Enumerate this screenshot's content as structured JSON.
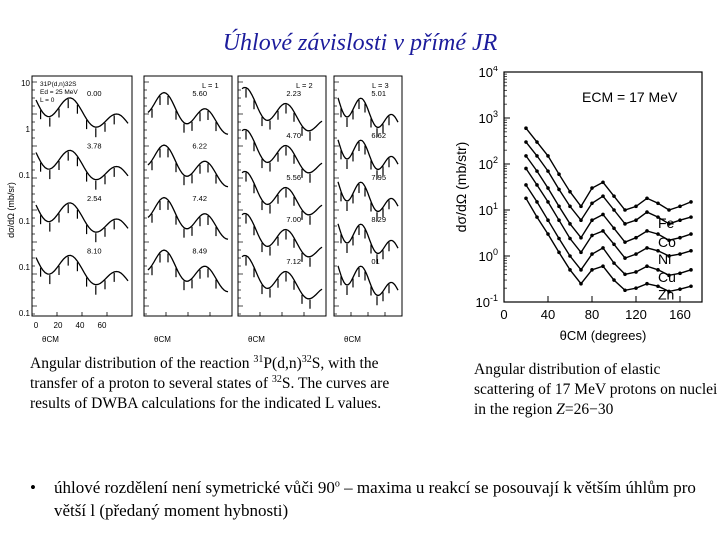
{
  "title": "Úhlové závislosti v přímé JR",
  "left_figure": {
    "ylabel": "dσ/dΩ (mb/sr)",
    "header_lines": [
      "31P(d,n)32S",
      "Ed = 25 MeV",
      "L = 0"
    ],
    "panel_labels": [
      "L = 1",
      "L = 2",
      "L = 3"
    ],
    "y_tick_labels": [
      "10",
      "1",
      "0.1",
      "0.1",
      "0.1",
      "0.1"
    ],
    "x_tick_labels": [
      "0",
      "20",
      "40",
      "60"
    ],
    "xlabel": "θCM",
    "energy_labels": [
      [
        "0.00",
        "3.78",
        "2.54",
        "8.10"
      ],
      [
        "5.60",
        "6.22",
        "7.42",
        "8.49"
      ],
      [
        "2.23",
        "4.70",
        "5.56",
        "7.00",
        "7.12"
      ],
      [
        "5.01",
        "6.62",
        "7.95",
        "8.29",
        "01"
      ]
    ]
  },
  "chart_data": {
    "type": "line",
    "title": "ECM = 17 MeV",
    "xlabel": "θCM (degrees)",
    "ylabel": "dσ/dΩ (mb/str)",
    "yscale": "log",
    "xlim": [
      0,
      180
    ],
    "ylim": [
      0.1,
      10000
    ],
    "x_ticks": [
      0,
      40,
      80,
      120,
      160
    ],
    "y_tick_labels": [
      "10-1",
      "100",
      "101",
      "102",
      "103",
      "104"
    ],
    "x": [
      20,
      30,
      40,
      50,
      60,
      70,
      80,
      90,
      100,
      110,
      120,
      130,
      140,
      150,
      160,
      170
    ],
    "series": [
      {
        "name": "",
        "values": [
          600,
          300,
          150,
          60,
          25,
          12,
          30,
          40,
          20,
          10,
          12,
          18,
          14,
          10,
          12,
          15
        ]
      },
      {
        "name": "Fe",
        "values": [
          300,
          150,
          70,
          28,
          12,
          6,
          14,
          20,
          10,
          5,
          6,
          9,
          7,
          5,
          6,
          7
        ]
      },
      {
        "name": "Co",
        "values": [
          150,
          70,
          30,
          12,
          5,
          2.5,
          6,
          8,
          4,
          2,
          2.5,
          3.5,
          3,
          2.2,
          2.5,
          3
        ]
      },
      {
        "name": "Ni",
        "values": [
          80,
          35,
          15,
          6,
          2.4,
          1.2,
          2.8,
          3.5,
          1.8,
          0.9,
          1.1,
          1.5,
          1.3,
          1,
          1.1,
          1.3
        ]
      },
      {
        "name": "Cu",
        "values": [
          35,
          15,
          6,
          2.4,
          1,
          0.5,
          1.1,
          1.5,
          0.7,
          0.4,
          0.45,
          0.6,
          0.5,
          0.38,
          0.42,
          0.5
        ]
      },
      {
        "name": "Zn",
        "values": [
          18,
          7,
          3,
          1.2,
          0.5,
          0.25,
          0.5,
          0.6,
          0.3,
          0.18,
          0.2,
          0.25,
          0.22,
          0.17,
          0.19,
          0.22
        ]
      }
    ]
  },
  "caption_left": {
    "part1": "Angular distribution of the reaction ",
    "sup1": "31",
    "part2": "P(d,n)",
    "sup2": "32",
    "part3": "S, with the transfer of a proton to several states of ",
    "sup3": "32",
    "part4": "S. The curves are results of DWBA calculations for the indicated L values."
  },
  "caption_right": {
    "part1": "Angular distribution of elastic scattering of 17 MeV protons on nuclei in the region ",
    "italic": "Z",
    "part2": "=26−30"
  },
  "bullet": {
    "symbol": "•",
    "part1": "úhlové rozdělení není symetrické vůči 90",
    "sup": "o",
    "part2": " – maxima u reakcí se posouvají k větším úhlům pro větší l (předaný moment hybnosti)"
  }
}
